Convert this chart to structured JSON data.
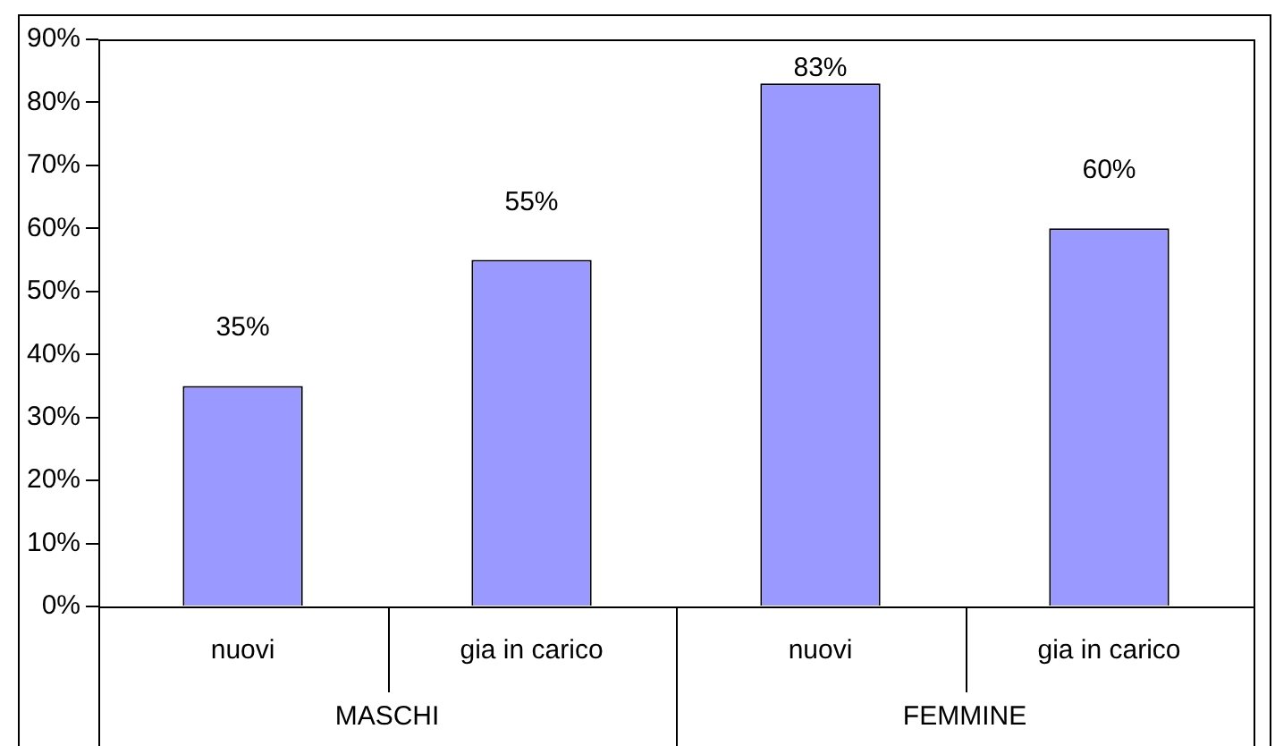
{
  "chart_data": {
    "type": "bar",
    "categories": [
      "nuovi",
      "gia in carico",
      "nuovi",
      "gia in carico"
    ],
    "values": [
      35,
      55,
      83,
      60
    ],
    "color": "#9999ff",
    "value_labels": [
      "35%",
      "55%",
      "83%",
      "60%"
    ],
    "ylim": [
      0,
      90
    ],
    "yticks": [
      {
        "value": 0,
        "label": "0%"
      },
      {
        "value": 10,
        "label": "10%"
      },
      {
        "value": 20,
        "label": "20%"
      },
      {
        "value": 30,
        "label": "30%"
      },
      {
        "value": 40,
        "label": "40%"
      },
      {
        "value": 50,
        "label": "50%"
      },
      {
        "value": 60,
        "label": "60%"
      },
      {
        "value": 70,
        "label": "70%"
      },
      {
        "value": 80,
        "label": "80%"
      },
      {
        "value": 90,
        "label": "90%"
      }
    ],
    "grid": false,
    "legend": false,
    "annotations": [
      "MASCHI",
      "FEMMINE"
    ]
  }
}
